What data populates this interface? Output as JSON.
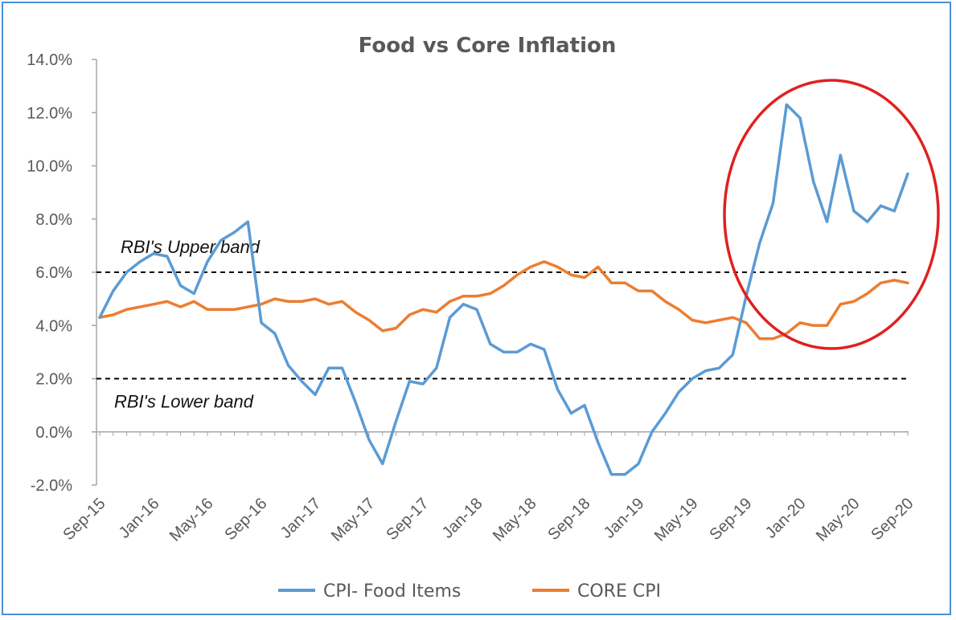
{
  "chart_data": {
    "type": "line",
    "title": "Food vs Core Inflation",
    "ylim": [
      -2.0,
      14.0
    ],
    "y_ticks": [
      "14.0%",
      "12.0%",
      "10.0%",
      "8.0%",
      "6.0%",
      "4.0%",
      "2.0%",
      "0.0%",
      "-2.0%"
    ],
    "x_tick_labels": [
      "Sep-15",
      "Jan-16",
      "May-16",
      "Sep-16",
      "Jan-17",
      "May-17",
      "Sep-17",
      "Jan-18",
      "May-18",
      "Sep-18",
      "Jan-19",
      "May-19",
      "Sep-19",
      "Jan-20",
      "May-20",
      "Sep-20"
    ],
    "x": [
      "Sep-15",
      "Oct-15",
      "Nov-15",
      "Dec-15",
      "Jan-16",
      "Feb-16",
      "Mar-16",
      "Apr-16",
      "May-16",
      "Jun-16",
      "Jul-16",
      "Aug-16",
      "Sep-16",
      "Oct-16",
      "Nov-16",
      "Dec-16",
      "Jan-17",
      "Feb-17",
      "Mar-17",
      "Apr-17",
      "May-17",
      "Jun-17",
      "Jul-17",
      "Aug-17",
      "Sep-17",
      "Oct-17",
      "Nov-17",
      "Dec-17",
      "Jan-18",
      "Feb-18",
      "Mar-18",
      "Apr-18",
      "May-18",
      "Jun-18",
      "Jul-18",
      "Aug-18",
      "Sep-18",
      "Oct-18",
      "Nov-18",
      "Dec-18",
      "Jan-19",
      "Feb-19",
      "Mar-19",
      "Apr-19",
      "May-19",
      "Jun-19",
      "Jul-19",
      "Aug-19",
      "Sep-19",
      "Oct-19",
      "Nov-19",
      "Dec-19",
      "Jan-20",
      "Feb-20",
      "Mar-20",
      "Apr-20",
      "May-20",
      "Jun-20",
      "Jul-20",
      "Aug-20",
      "Sep-20"
    ],
    "series": [
      {
        "name": "CPI- Food Items",
        "color": "#5b9bd5",
        "values": [
          4.3,
          5.3,
          6.0,
          6.4,
          6.7,
          6.6,
          5.5,
          5.2,
          6.4,
          7.2,
          7.5,
          7.9,
          4.1,
          3.7,
          2.5,
          1.9,
          1.4,
          2.4,
          2.4,
          1.1,
          -0.3,
          -1.2,
          0.4,
          1.9,
          1.8,
          2.4,
          4.3,
          4.8,
          4.6,
          3.3,
          3.0,
          3.0,
          3.3,
          3.1,
          1.6,
          0.7,
          1.0,
          -0.4,
          -1.6,
          -1.6,
          -1.2,
          0.0,
          0.7,
          1.5,
          2.0,
          2.3,
          2.4,
          2.9,
          5.1,
          7.1,
          8.6,
          12.3,
          11.8,
          9.4,
          7.9,
          10.4,
          8.3,
          7.9,
          8.5,
          8.3,
          9.7
        ]
      },
      {
        "name": "CORE CPI",
        "color": "#ed7d31",
        "values": [
          4.3,
          4.4,
          4.6,
          4.7,
          4.8,
          4.9,
          4.7,
          4.9,
          4.6,
          4.6,
          4.6,
          4.7,
          4.8,
          5.0,
          4.9,
          4.9,
          5.0,
          4.8,
          4.9,
          4.5,
          4.2,
          3.8,
          3.9,
          4.4,
          4.6,
          4.5,
          4.9,
          5.1,
          5.1,
          5.2,
          5.5,
          5.9,
          6.2,
          6.4,
          6.2,
          5.9,
          5.8,
          6.2,
          5.6,
          5.6,
          5.3,
          5.3,
          4.9,
          4.6,
          4.2,
          4.1,
          4.2,
          4.3,
          4.1,
          3.5,
          3.5,
          3.7,
          4.1,
          4.0,
          4.0,
          4.8,
          4.9,
          5.2,
          5.6,
          5.7,
          5.6
        ]
      }
    ],
    "reference_lines": [
      {
        "y": 6.0,
        "label": "RBI's Upper band"
      },
      {
        "y": 2.0,
        "label": "RBI's Lower band"
      }
    ],
    "highlight_color": "#e02020",
    "legend_position": "bottom",
    "grid": false
  }
}
